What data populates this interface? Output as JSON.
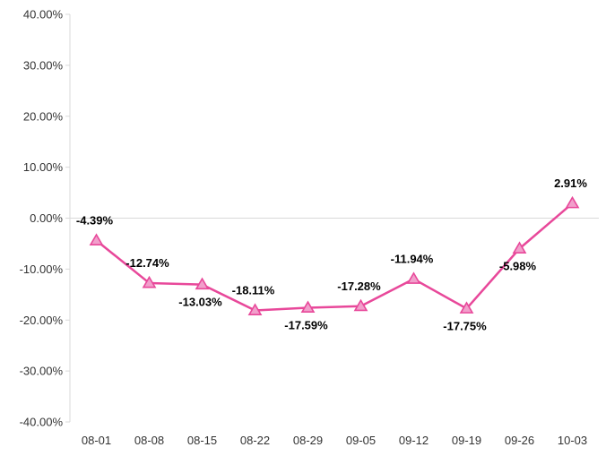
{
  "chart_data": {
    "type": "line",
    "title": "",
    "xlabel": "",
    "ylabel": "",
    "categories": [
      "08-01",
      "08-08",
      "08-15",
      "08-22",
      "08-29",
      "09-05",
      "09-12",
      "09-19",
      "09-26",
      "10-03"
    ],
    "series": [
      {
        "values": [
          -4.39,
          -12.74,
          -13.03,
          -18.11,
          -17.59,
          -17.28,
          -11.94,
          -17.75,
          -5.98,
          2.91
        ],
        "labels": [
          "-4.39%",
          "-12.74%",
          "-13.03%",
          "-18.11%",
          "-17.59%",
          "-17.28%",
          "-11.94%",
          "-17.75%",
          "-5.98%",
          "2.91%"
        ],
        "label_positions": [
          "above",
          "above",
          "below",
          "above",
          "below",
          "above",
          "above",
          "below",
          "below",
          "above"
        ],
        "color": "#e8489a",
        "marker": "triangle",
        "marker_fill": "#f19fcb"
      }
    ],
    "yticks": [
      "40.00%",
      "30.00%",
      "20.00%",
      "10.00%",
      "0.00%",
      "-10.00%",
      "-20.00%",
      "-30.00%",
      "-40.00%"
    ],
    "ylim": [
      -40,
      40
    ],
    "grid": false,
    "legend": "none",
    "axis_color": "#d9d9d9"
  }
}
